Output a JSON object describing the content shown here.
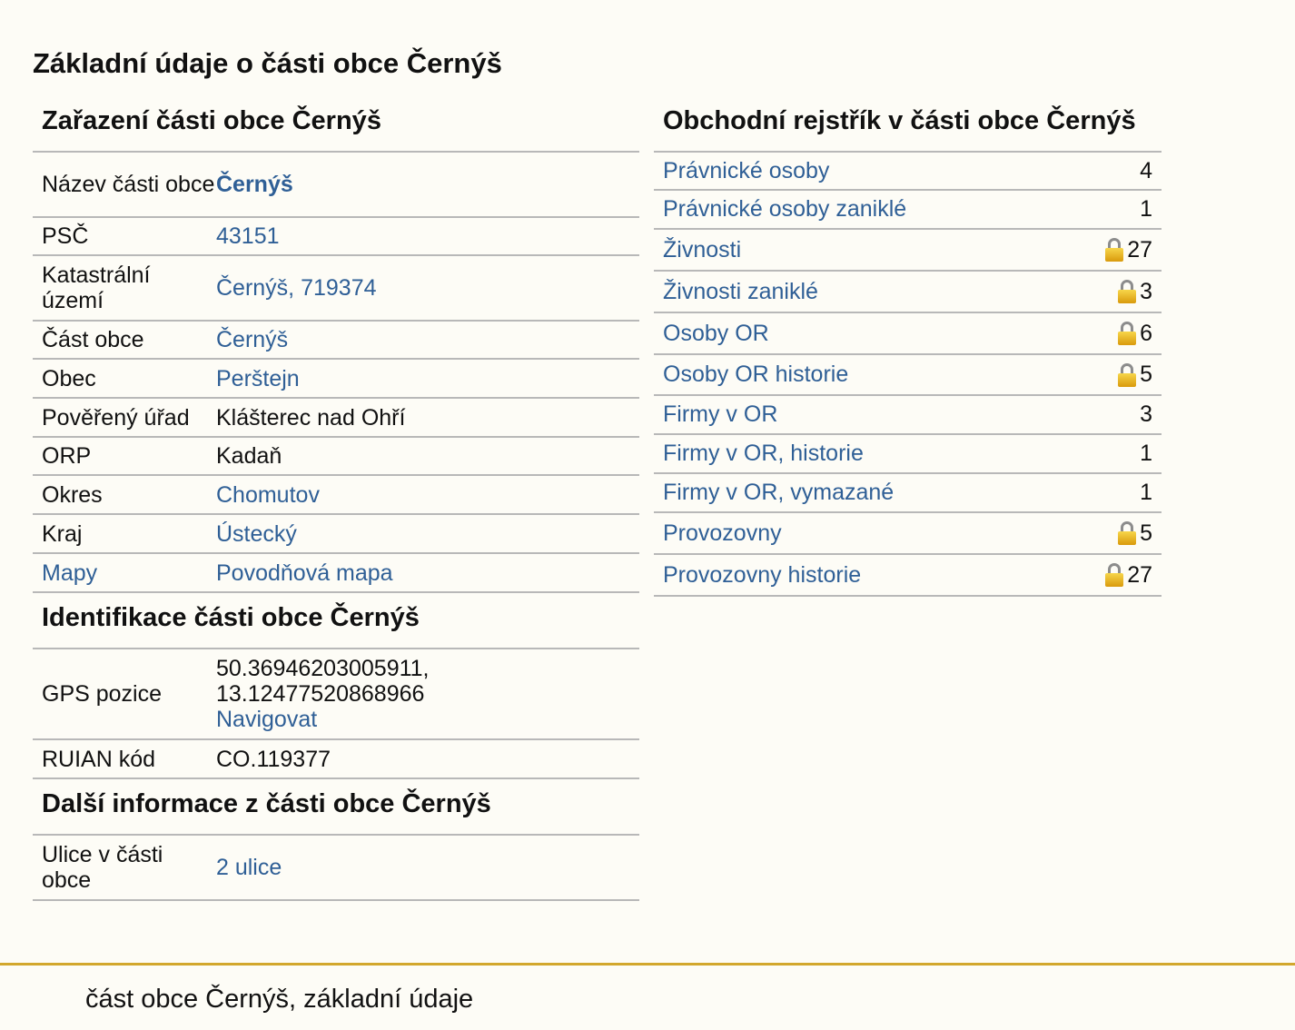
{
  "page_title": "Základní údaje o části obce Černýš",
  "zarazeni": {
    "heading": "Zařazení části obce Černýš",
    "rows": [
      {
        "label": "Název části obce",
        "value": "Černýš"
      },
      {
        "label": "PSČ",
        "value": "43151"
      },
      {
        "label": "Katastrální území",
        "value": "Černýš, 719374"
      },
      {
        "label": "Část obce",
        "value": "Černýš"
      },
      {
        "label": "Obec",
        "value": "Perštejn"
      },
      {
        "label": "Pověřený úřad",
        "value": "Klášterec nad Ohří"
      },
      {
        "label": "ORP",
        "value": "Kadaň"
      },
      {
        "label": "Okres",
        "value": "Chomutov"
      },
      {
        "label": "Kraj",
        "value": "Ústecký"
      },
      {
        "label": "Mapy",
        "value": "Povodňová mapa"
      }
    ]
  },
  "identifikace": {
    "heading": "Identifikace části obce Černýš",
    "gps_label": "GPS pozice",
    "gps_line1": "50.36946203005911,",
    "gps_line2": "13.12477520868966",
    "navigate_label": "Navigovat",
    "ruian_label": "RUIAN kód",
    "ruian_value": "CO.119377"
  },
  "dalsi": {
    "heading": "Další informace z části obce Černýš",
    "ulice_label": "Ulice v části obce",
    "ulice_value": "2 ulice"
  },
  "obchodni": {
    "heading": "Obchodní rejstřík v části obce Černýš",
    "rows": [
      {
        "label": "Právnické osoby",
        "count": "4",
        "locked": false
      },
      {
        "label": "Právnické osoby zaniklé",
        "count": "1",
        "locked": false
      },
      {
        "label": "Živnosti",
        "count": "27",
        "locked": true
      },
      {
        "label": "Živnosti zaniklé",
        "count": "3",
        "locked": true
      },
      {
        "label": "Osoby OR",
        "count": "6",
        "locked": true
      },
      {
        "label": "Osoby OR historie",
        "count": "5",
        "locked": true
      },
      {
        "label": "Firmy v OR",
        "count": "3",
        "locked": false
      },
      {
        "label": "Firmy v OR, historie",
        "count": "1",
        "locked": false
      },
      {
        "label": "Firmy v OR, vymazané",
        "count": "1",
        "locked": false
      },
      {
        "label": "Provozovny",
        "count": "5",
        "locked": true
      },
      {
        "label": "Provozovny historie",
        "count": "27",
        "locked": true
      }
    ]
  },
  "footer": {
    "text": "část obce Černýš, základní údaje"
  },
  "colors": {
    "link": "#2f5f96",
    "background": "#fdfcf6",
    "footer_rule": "#d2a72d",
    "row_border": "#b8b8b8"
  }
}
